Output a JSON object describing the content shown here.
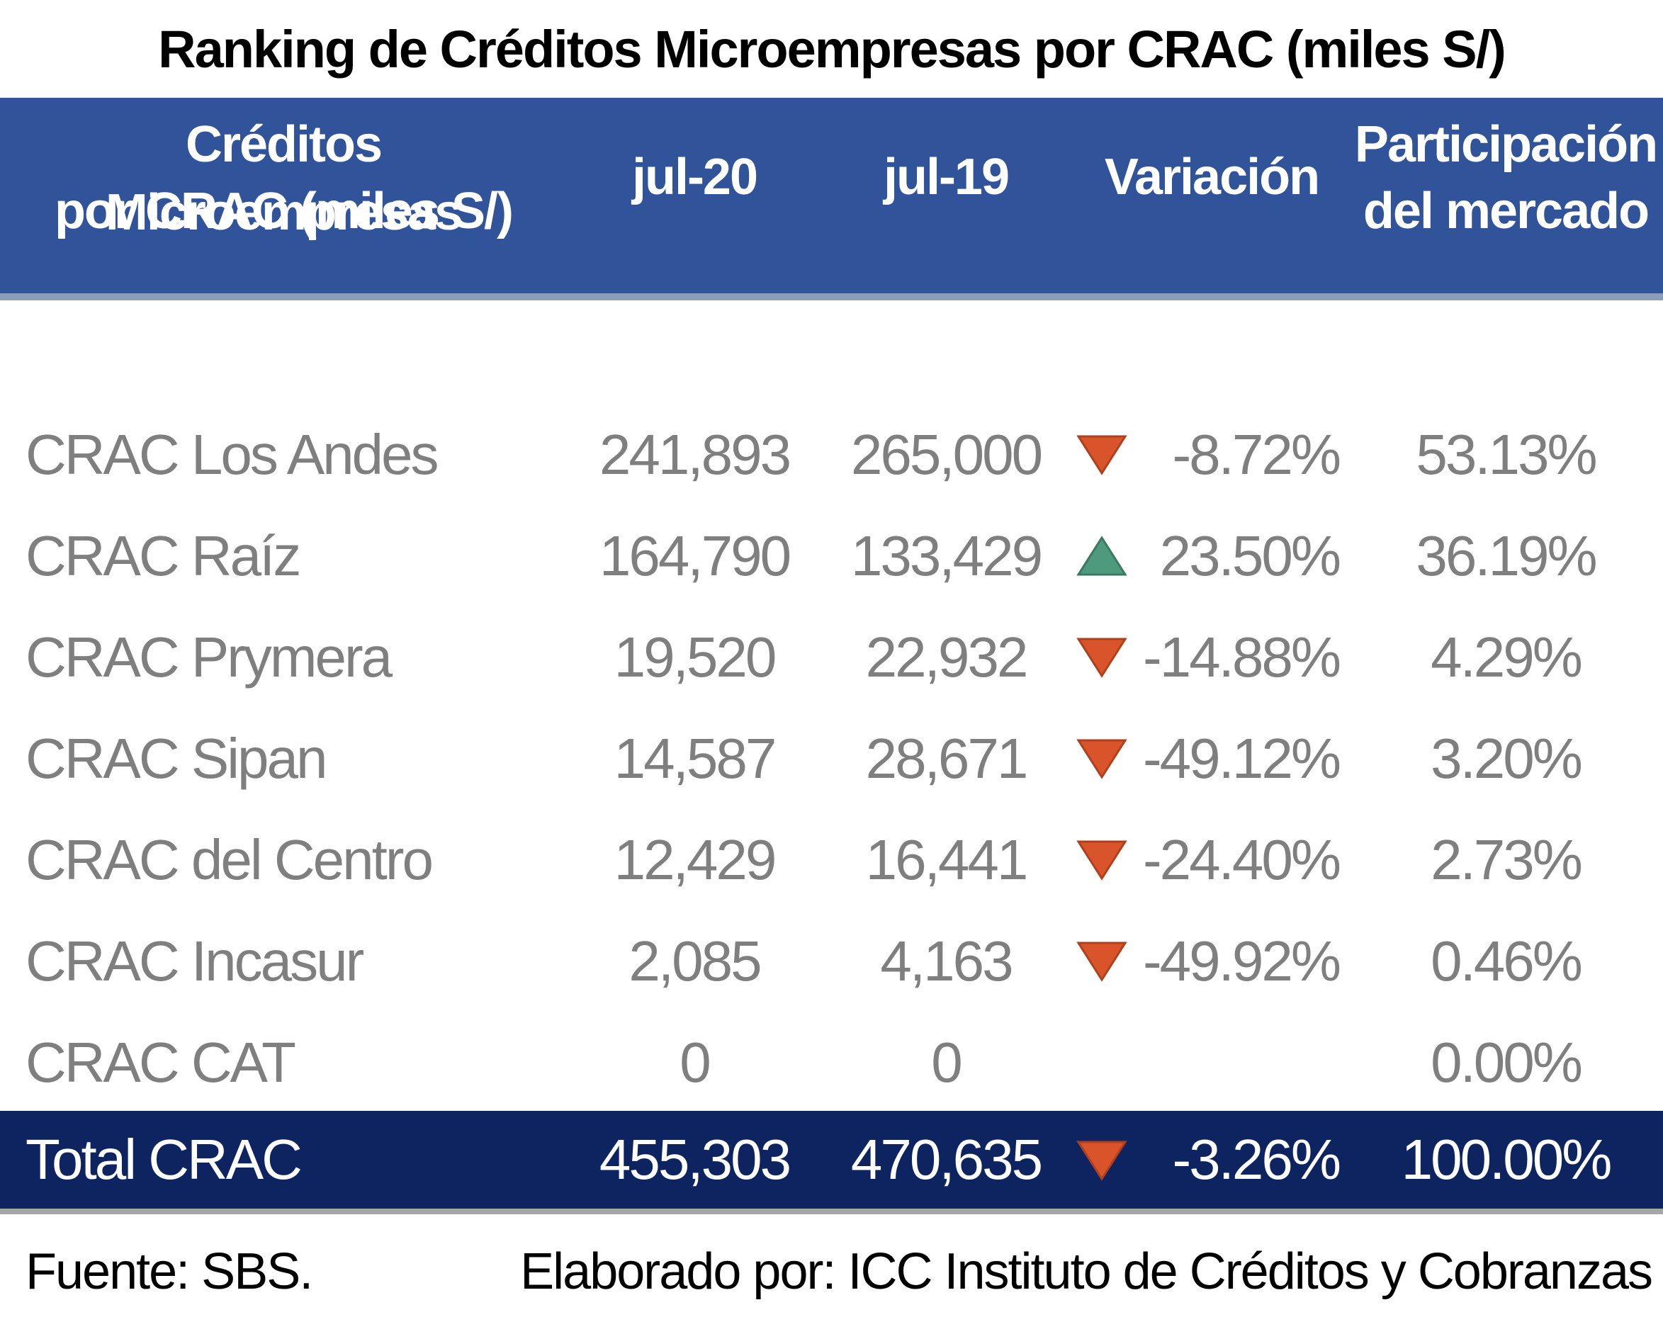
{
  "title": "Ranking de Créditos Microempresas por CRAC (miles S/)",
  "header": {
    "name_col_line1": "Créditos Microempresas",
    "name_col_line2": "por CRAC (miles S/)",
    "jul20": "jul-20",
    "jul19": "jul-19",
    "variacion": "Variación",
    "participacion_line1": "Participación",
    "participacion_line2": "del mercado"
  },
  "rows": [
    {
      "name": "CRAC Los Andes",
      "jul20": "241,893",
      "jul19": "265,000",
      "trend": "down",
      "variacion": "-8.72%",
      "participacion": "53.13%"
    },
    {
      "name": "CRAC Raíz",
      "jul20": "164,790",
      "jul19": "133,429",
      "trend": "up",
      "variacion": "23.50%",
      "participacion": "36.19%"
    },
    {
      "name": "CRAC Prymera",
      "jul20": "19,520",
      "jul19": "22,932",
      "trend": "down",
      "variacion": "-14.88%",
      "participacion": "4.29%"
    },
    {
      "name": "CRAC Sipan",
      "jul20": "14,587",
      "jul19": "28,671",
      "trend": "down",
      "variacion": "-49.12%",
      "participacion": "3.20%"
    },
    {
      "name": "CRAC del Centro",
      "jul20": "12,429",
      "jul19": "16,441",
      "trend": "down",
      "variacion": "-24.40%",
      "participacion": "2.73%"
    },
    {
      "name": "CRAC Incasur",
      "jul20": "2,085",
      "jul19": "4,163",
      "trend": "down",
      "variacion": "-49.92%",
      "participacion": "0.46%"
    },
    {
      "name": "CRAC CAT",
      "jul20": "0",
      "jul19": "0",
      "trend": "none",
      "variacion": "",
      "participacion": "0.00%"
    }
  ],
  "total": {
    "name": "Total CRAC",
    "jul20": "455,303",
    "jul19": "470,635",
    "trend": "down",
    "variacion": "-3.26%",
    "participacion": "100.00%"
  },
  "footer": {
    "source": "Fuente: SBS.",
    "credit": "Elaborado por: ICC Instituto de Créditos y Cobranzas"
  },
  "colors": {
    "header_bg": "#31539a",
    "total_bg": "#0e2460",
    "down_arrow": "#d9542b",
    "up_arrow": "#4e9a7e",
    "body_text": "#7f7f7f"
  }
}
